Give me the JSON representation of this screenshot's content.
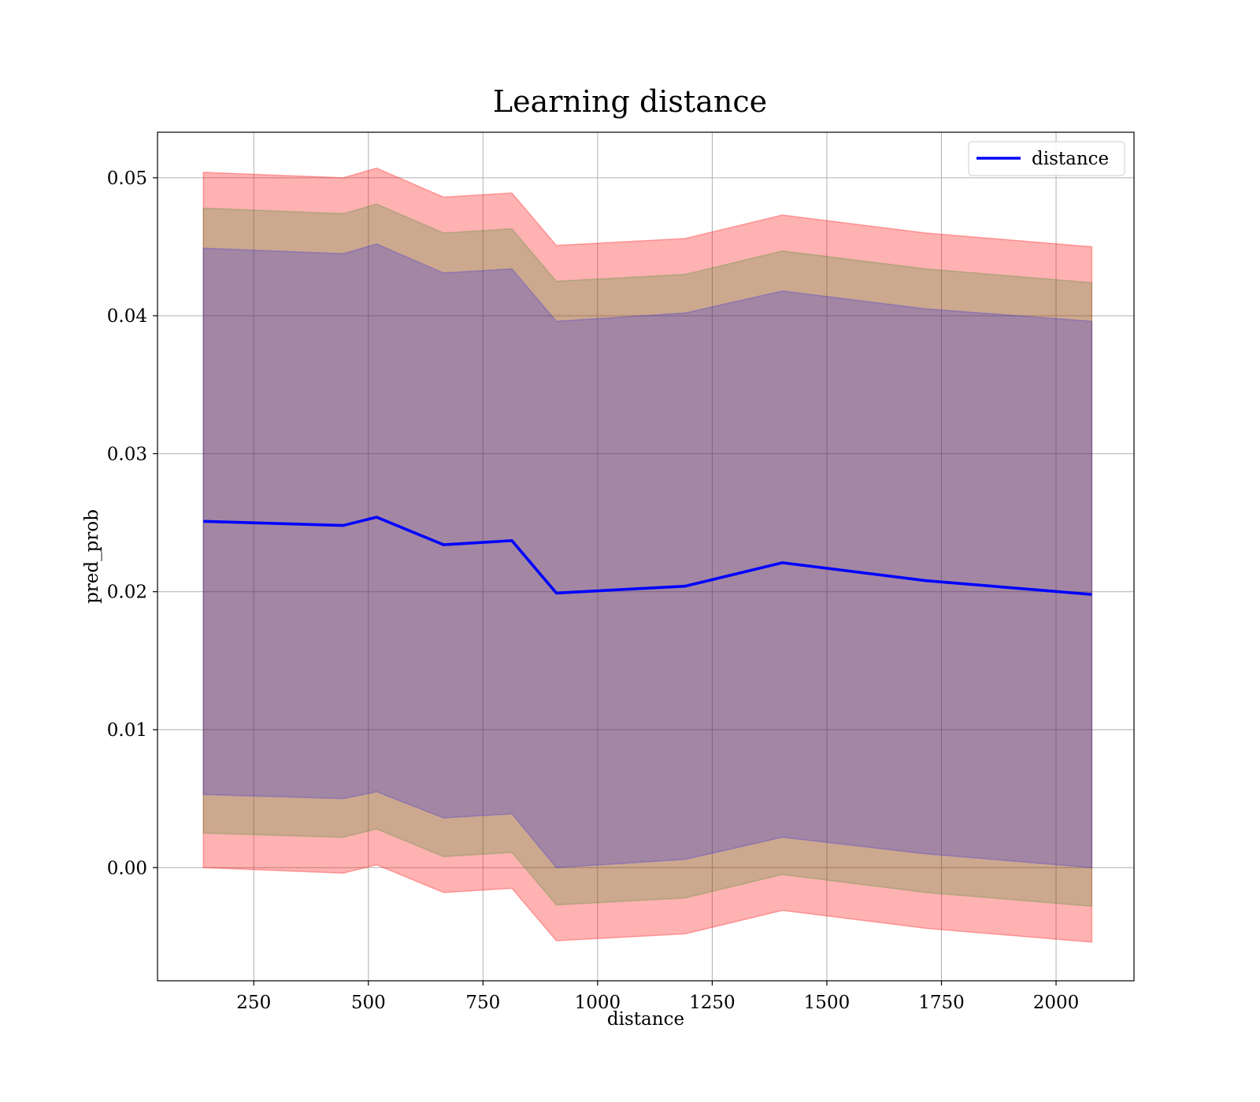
{
  "chart_data": {
    "type": "line",
    "title": "Learning distance",
    "xlabel": "distance",
    "ylabel": "pred_prob",
    "xlim": [
      40,
      2170
    ],
    "ylim": [
      -0.0082,
      0.0533
    ],
    "xticks": [
      250,
      500,
      750,
      1000,
      1250,
      1500,
      1750,
      2000
    ],
    "xtick_labels": [
      "250",
      "500",
      "750",
      "1000",
      "1250",
      "1500",
      "1750",
      "2000"
    ],
    "yticks": [
      0.0,
      0.01,
      0.02,
      0.03,
      0.04,
      0.05
    ],
    "ytick_labels": [
      "0.00",
      "0.01",
      "0.02",
      "0.03",
      "0.04",
      "0.05"
    ],
    "grid": true,
    "legend": {
      "placement": "top-right",
      "entries": [
        "distance"
      ]
    },
    "x": [
      140,
      445,
      518,
      664,
      813,
      910,
      1191,
      1403,
      1716,
      2078
    ],
    "series": [
      {
        "name": "distance",
        "color": "#0000ff",
        "values": [
          0.0251,
          0.0248,
          0.0254,
          0.0234,
          0.0237,
          0.0199,
          0.0204,
          0.0221,
          0.0208,
          0.0198
        ]
      }
    ],
    "bands": [
      {
        "color": "#ff0000",
        "opacity": 0.3,
        "upper": [
          0.0504,
          0.05,
          0.0507,
          0.0486,
          0.0489,
          0.0451,
          0.0456,
          0.0473,
          0.046,
          0.045
        ],
        "lower": [
          0.0,
          -0.0004,
          0.0002,
          -0.0018,
          -0.0015,
          -0.0053,
          -0.0048,
          -0.0031,
          -0.0044,
          -0.0054
        ]
      },
      {
        "color": "#008000",
        "opacity": 0.2,
        "upper": [
          0.0478,
          0.0474,
          0.0481,
          0.046,
          0.0463,
          0.0425,
          0.043,
          0.0447,
          0.0434,
          0.0424
        ],
        "lower": [
          0.0025,
          0.0022,
          0.0028,
          0.0008,
          0.0011,
          -0.0027,
          -0.0022,
          -0.0005,
          -0.0018,
          -0.0028
        ]
      },
      {
        "color": "#0000ff",
        "opacity": 0.2,
        "upper": [
          0.0449,
          0.0445,
          0.0452,
          0.0431,
          0.0434,
          0.0396,
          0.0402,
          0.0418,
          0.0405,
          0.0396
        ],
        "lower": [
          0.0053,
          0.005,
          0.0055,
          0.0036,
          0.0039,
          0.0,
          0.0006,
          0.0022,
          0.001,
          0.0
        ]
      }
    ]
  }
}
